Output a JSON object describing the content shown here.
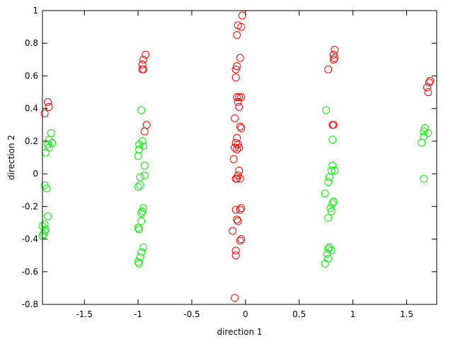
{
  "chart_data": {
    "type": "scatter",
    "title": "",
    "xlabel": "direction 1",
    "ylabel": "direction 2",
    "xlim": [
      -1.89,
      1.78
    ],
    "ylim": [
      -0.8,
      1.0
    ],
    "xticks": [
      -1.5,
      -1,
      -0.5,
      0,
      0.5,
      1,
      1.5
    ],
    "xtick_labels": [
      "-1.5",
      "-1",
      "-0.5",
      "0",
      "0.5",
      "1",
      "1.5"
    ],
    "yticks": [
      -0.8,
      -0.6,
      -0.4,
      -0.2,
      0,
      0.2,
      0.4,
      0.6,
      0.8,
      1.0
    ],
    "ytick_labels": [
      "-0.8",
      "-0.6",
      "-0.4",
      "-0.2",
      "0",
      "0.2",
      "0.4",
      "0.6",
      "0.8",
      "1"
    ],
    "grid": false,
    "legend": "none",
    "series": [
      {
        "color": "#ff0000",
        "marker": "open-circle",
        "points": [
          [
            -1.84,
            0.44
          ],
          [
            -1.83,
            0.41
          ],
          [
            -1.87,
            0.37
          ],
          [
            -0.93,
            0.73
          ],
          [
            -0.95,
            0.7
          ],
          [
            -0.96,
            0.67
          ],
          [
            -0.95,
            0.64
          ],
          [
            -0.96,
            0.64
          ],
          [
            -0.92,
            0.3
          ],
          [
            -0.94,
            0.26
          ],
          [
            -0.03,
            0.97
          ],
          [
            -0.07,
            0.91
          ],
          [
            -0.04,
            0.9
          ],
          [
            -0.08,
            0.85
          ],
          [
            -0.05,
            0.71
          ],
          [
            -0.08,
            0.66
          ],
          [
            -0.09,
            0.64
          ],
          [
            -0.09,
            0.59
          ],
          [
            -0.08,
            0.47
          ],
          [
            -0.06,
            0.47
          ],
          [
            -0.04,
            0.47
          ],
          [
            -0.07,
            0.44
          ],
          [
            -0.06,
            0.41
          ],
          [
            -0.1,
            0.34
          ],
          [
            -0.05,
            0.29
          ],
          [
            -0.04,
            0.28
          ],
          [
            -0.08,
            0.22
          ],
          [
            -0.09,
            0.19
          ],
          [
            -0.07,
            0.18
          ],
          [
            -0.1,
            0.16
          ],
          [
            -0.08,
            0.15
          ],
          [
            -0.06,
            0.16
          ],
          [
            -0.11,
            0.09
          ],
          [
            -0.06,
            0.02
          ],
          [
            -0.07,
            -0.01
          ],
          [
            -0.09,
            -0.03
          ],
          [
            -0.08,
            -0.03
          ],
          [
            -0.05,
            -0.03
          ],
          [
            -0.04,
            -0.21
          ],
          [
            -0.05,
            -0.22
          ],
          [
            -0.09,
            -0.22
          ],
          [
            -0.08,
            -0.28
          ],
          [
            -0.07,
            -0.29
          ],
          [
            -0.12,
            -0.35
          ],
          [
            -0.04,
            -0.4
          ],
          [
            -0.05,
            -0.41
          ],
          [
            -0.09,
            -0.47
          ],
          [
            -0.09,
            -0.5
          ],
          [
            -0.1,
            -0.76
          ],
          [
            0.77,
            0.64
          ],
          [
            0.83,
            0.76
          ],
          [
            0.82,
            0.73
          ],
          [
            0.82,
            0.7
          ],
          [
            0.83,
            0.71
          ],
          [
            0.82,
            0.3
          ],
          [
            0.81,
            0.3
          ],
          [
            1.72,
            0.57
          ],
          [
            1.71,
            0.56
          ],
          [
            1.69,
            0.53
          ],
          [
            1.7,
            0.5
          ]
        ]
      },
      {
        "color": "#00ee00",
        "marker": "open-circle",
        "points": [
          [
            -1.81,
            0.25
          ],
          [
            -1.83,
            0.21
          ],
          [
            -1.8,
            0.19
          ],
          [
            -1.84,
            0.18
          ],
          [
            -1.83,
            0.16
          ],
          [
            -1.86,
            0.13
          ],
          [
            -1.87,
            -0.07
          ],
          [
            -1.85,
            -0.09
          ],
          [
            -1.84,
            -0.26
          ],
          [
            -1.87,
            -0.31
          ],
          [
            -1.89,
            -0.32
          ],
          [
            -1.86,
            -0.34
          ],
          [
            -1.87,
            -0.35
          ],
          [
            -1.88,
            -0.37
          ],
          [
            -1.89,
            -0.38
          ],
          [
            -0.97,
            0.39
          ],
          [
            -0.96,
            0.2
          ],
          [
            -0.99,
            0.18
          ],
          [
            -0.95,
            0.17
          ],
          [
            -0.99,
            0.15
          ],
          [
            -1.0,
            0.11
          ],
          [
            -0.94,
            0.05
          ],
          [
            -0.98,
            -0.02
          ],
          [
            -0.94,
            -0.01
          ],
          [
            -0.98,
            -0.07
          ],
          [
            -1.0,
            -0.08
          ],
          [
            -0.95,
            -0.21
          ],
          [
            -0.96,
            -0.23
          ],
          [
            -0.97,
            -0.24
          ],
          [
            -0.97,
            -0.29
          ],
          [
            -1.0,
            -0.33
          ],
          [
            -0.99,
            -0.34
          ],
          [
            -0.95,
            -0.45
          ],
          [
            -0.97,
            -0.48
          ],
          [
            -0.98,
            -0.51
          ],
          [
            -1.0,
            -0.54
          ],
          [
            -0.99,
            -0.55
          ],
          [
            0.75,
            0.39
          ],
          [
            0.81,
            0.21
          ],
          [
            0.81,
            0.05
          ],
          [
            0.83,
            0.02
          ],
          [
            0.8,
            0.02
          ],
          [
            0.78,
            -0.02
          ],
          [
            0.77,
            -0.05
          ],
          [
            0.74,
            -0.12
          ],
          [
            0.82,
            -0.17
          ],
          [
            0.81,
            -0.18
          ],
          [
            0.79,
            -0.21
          ],
          [
            0.8,
            -0.23
          ],
          [
            0.77,
            -0.27
          ],
          [
            0.78,
            -0.45
          ],
          [
            0.77,
            -0.46
          ],
          [
            0.8,
            -0.47
          ],
          [
            0.76,
            -0.49
          ],
          [
            0.77,
            -0.52
          ],
          [
            0.74,
            -0.55
          ],
          [
            1.67,
            0.28
          ],
          [
            1.66,
            0.26
          ],
          [
            1.7,
            0.25
          ],
          [
            1.66,
            0.23
          ],
          [
            1.64,
            0.19
          ],
          [
            1.66,
            -0.03
          ]
        ]
      }
    ]
  }
}
